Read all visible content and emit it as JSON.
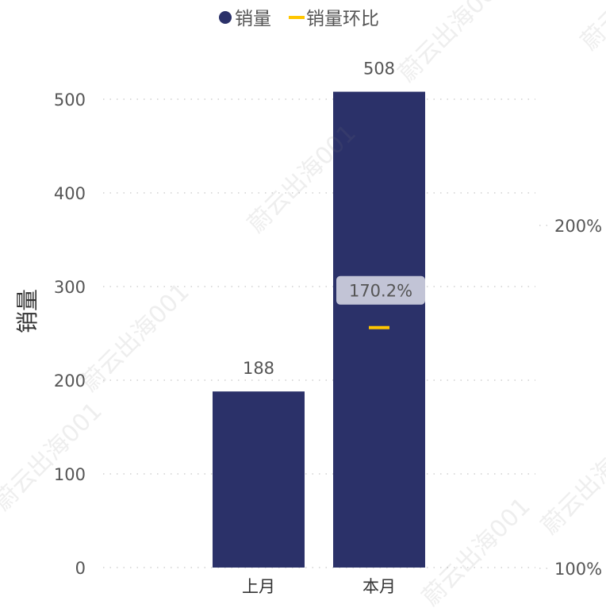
{
  "chart_data": {
    "type": "bar",
    "categories": [
      "上月",
      "本月"
    ],
    "series": [
      {
        "name": "销量",
        "values": [
          188,
          508
        ]
      },
      {
        "name": "销量环比",
        "values": [
          null,
          170.2
        ]
      }
    ],
    "data_labels": [
      "188",
      "508"
    ],
    "line_label": "170.2%",
    "ylabel": "销量",
    "y_ticks": [
      "0",
      "100",
      "200",
      "300",
      "400",
      "500"
    ],
    "ylim": [
      0,
      500
    ],
    "y2_ticks": [
      "100%",
      "200%"
    ],
    "y2lim": [
      100,
      200
    ],
    "legend_position": "top-center",
    "grid": true,
    "colors": {
      "bar": "#2b3169",
      "line": "#ffc600",
      "label_box": "#c2c4d6",
      "text": "#555555",
      "grid": "#c8c8c8"
    }
  },
  "watermark": {
    "text": "蔚云出海001"
  }
}
